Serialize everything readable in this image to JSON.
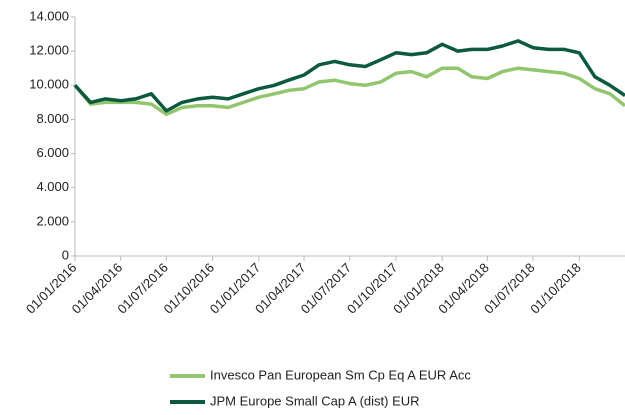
{
  "chart_data": {
    "type": "line",
    "x": [
      "01/01/2016",
      "01/02/2016",
      "01/03/2016",
      "01/04/2016",
      "01/05/2016",
      "01/06/2016",
      "01/07/2016",
      "01/08/2016",
      "01/09/2016",
      "01/10/2016",
      "01/11/2016",
      "01/12/2016",
      "01/01/2017",
      "01/02/2017",
      "01/03/2017",
      "01/04/2017",
      "01/05/2017",
      "01/06/2017",
      "01/07/2017",
      "01/08/2017",
      "01/09/2017",
      "01/10/2017",
      "01/11/2017",
      "01/12/2017",
      "01/01/2018",
      "01/02/2018",
      "01/03/2018",
      "01/04/2018",
      "01/05/2018",
      "01/06/2018",
      "01/07/2018",
      "01/08/2018",
      "01/09/2018",
      "01/10/2018",
      "01/11/2018",
      "01/12/2018",
      "31/12/2018"
    ],
    "series": [
      {
        "name": "Invesco Pan European Sm Cp Eq A EUR Acc",
        "color": "#92c66e",
        "values": [
          10000,
          8900,
          9000,
          9000,
          9000,
          8900,
          8300,
          8700,
          8800,
          8800,
          8700,
          9000,
          9300,
          9500,
          9700,
          9800,
          10200,
          10300,
          10100,
          10000,
          10200,
          10700,
          10800,
          10500,
          11000,
          11000,
          10500,
          10400,
          10800,
          11000,
          10900,
          10800,
          10700,
          10400,
          9800,
          9500,
          8800
        ]
      },
      {
        "name": "JPM Europe Small Cap A (dist) EUR",
        "color": "#0b5a3e",
        "values": [
          10000,
          9000,
          9200,
          9100,
          9200,
          9500,
          8500,
          9000,
          9200,
          9300,
          9200,
          9500,
          9800,
          10000,
          10300,
          10600,
          11200,
          11400,
          11200,
          11100,
          11500,
          11900,
          11800,
          11900,
          12400,
          12000,
          12100,
          12100,
          12300,
          12600,
          12200,
          12100,
          12100,
          11900,
          10500,
          10000,
          9400
        ]
      }
    ],
    "xlim": [
      "01/01/2016",
      "31/12/2018"
    ],
    "xticks": [
      "01/01/2016",
      "01/04/2016",
      "01/07/2016",
      "01/10/2016",
      "01/01/2017",
      "01/04/2017",
      "01/07/2017",
      "01/10/2017",
      "01/01/2018",
      "01/04/2018",
      "01/07/2018",
      "01/10/2018"
    ],
    "ylim": [
      0,
      14000
    ],
    "yticks": [
      0,
      {
        "value": 2000,
        "label": "2.000"
      },
      {
        "value": 4000,
        "label": "4.000"
      },
      {
        "value": 6000,
        "label": "6.000"
      },
      {
        "value": 8000,
        "label": "8.000"
      },
      {
        "value": 10000,
        "label": "10.000"
      },
      {
        "value": 12000,
        "label": "12.000"
      },
      {
        "value": 14000,
        "label": "14.000"
      }
    ]
  }
}
